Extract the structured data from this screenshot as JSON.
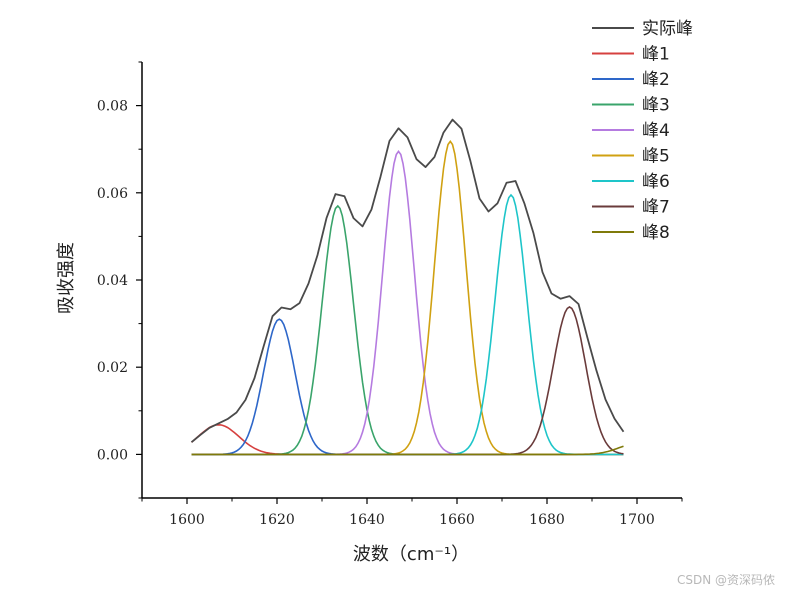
{
  "chart_data": {
    "type": "line",
    "title": "",
    "xlabel": "波数（cm⁻¹）",
    "ylabel": "吸收强度",
    "xlim": [
      1590,
      1710
    ],
    "ylim": [
      -0.01,
      0.09
    ],
    "xticks": [
      1600,
      1620,
      1640,
      1660,
      1680,
      1700
    ],
    "yticks": [
      0.0,
      0.02,
      0.04,
      0.06,
      0.08
    ],
    "ytick_labels": [
      "0.00",
      "0.02",
      "0.04",
      "0.06",
      "0.08"
    ],
    "grid": false,
    "legend_position": "top-right",
    "peaks": [
      {
        "name": "峰1",
        "center": 1607,
        "height": 0.0068,
        "width": 4.5,
        "color": "#d6403f"
      },
      {
        "name": "峰2",
        "center": 1620.5,
        "height": 0.031,
        "width": 3.5,
        "color": "#2e67c9"
      },
      {
        "name": "峰3",
        "center": 1633.5,
        "height": 0.057,
        "width": 3.5,
        "color": "#3aa46b"
      },
      {
        "name": "峰4",
        "center": 1647,
        "height": 0.0695,
        "width": 3.5,
        "color": "#b57be0"
      },
      {
        "name": "峰5",
        "center": 1658.5,
        "height": 0.0718,
        "width": 3.5,
        "color": "#d0a112"
      },
      {
        "name": "峰6",
        "center": 1672,
        "height": 0.0595,
        "width": 3.5,
        "color": "#1ec5c9"
      },
      {
        "name": "峰7",
        "center": 1685,
        "height": 0.0338,
        "width": 3.6,
        "color": "#6a3b3b"
      },
      {
        "name": "峰8",
        "center": 1700,
        "height": 0.0025,
        "width": 4.0,
        "color": "#7f7a0a"
      }
    ],
    "series": [
      {
        "name": "实际峰",
        "color": "#4a4a4a",
        "x": [
          1601,
          1603,
          1605,
          1607,
          1609,
          1611,
          1613,
          1615,
          1617,
          1619,
          1621,
          1623,
          1625,
          1627,
          1629,
          1631,
          1633,
          1635,
          1637,
          1639,
          1641,
          1643,
          1645,
          1647,
          1649,
          1651,
          1653,
          1655,
          1657,
          1659,
          1661,
          1663,
          1665,
          1667,
          1669,
          1671,
          1673,
          1675,
          1677,
          1679,
          1681,
          1683,
          1685,
          1687,
          1689,
          1691,
          1693,
          1695,
          1697
        ],
        "y": [
          0.0028,
          0.0045,
          0.0061,
          0.0071,
          0.0081,
          0.0096,
          0.0125,
          0.0175,
          0.0247,
          0.0317,
          0.0337,
          0.0333,
          0.0347,
          0.0392,
          0.0457,
          0.0542,
          0.0597,
          0.0592,
          0.0542,
          0.0523,
          0.0562,
          0.0637,
          0.0719,
          0.0748,
          0.0727,
          0.0677,
          0.0659,
          0.0682,
          0.0738,
          0.0768,
          0.0747,
          0.0672,
          0.0587,
          0.0557,
          0.0576,
          0.0623,
          0.0627,
          0.0575,
          0.0507,
          0.0418,
          0.0369,
          0.0357,
          0.0363,
          0.0345,
          0.0267,
          0.0192,
          0.0126,
          0.0082,
          0.0052
        ]
      }
    ]
  },
  "watermark": "CSDN @资深码侬"
}
